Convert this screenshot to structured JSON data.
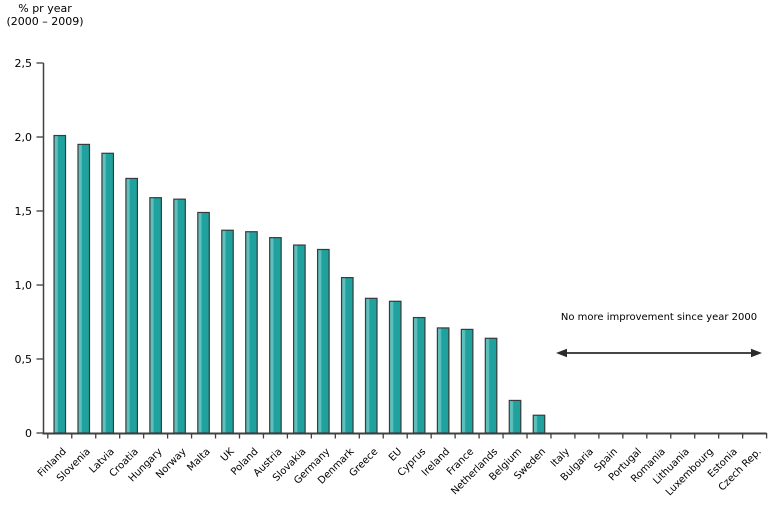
{
  "chart_data": {
    "type": "bar",
    "title": "% pr year (2000 – 2009)",
    "title_lines": [
      "% pr year",
      "(2000 – 2009)"
    ],
    "xlabel": "",
    "ylabel": "% pr year",
    "ylim": [
      0,
      2.5
    ],
    "ytick_interval": 0.5,
    "ytick_labels": [
      "0",
      "0,5",
      "1,0",
      "1,5",
      "2,0",
      "2,5"
    ],
    "decimal_separator": ",",
    "grid": false,
    "legend": "none",
    "categories": [
      "Finland",
      "Slovenia",
      "Latvia",
      "Croatia",
      "Hungary",
      "Norway",
      "Malta",
      "UK",
      "Poland",
      "Austria",
      "Slovakia",
      "Germany",
      "Denmark",
      "Greece",
      "EU",
      "Cyprus",
      "Ireland",
      "France",
      "Netherlands",
      "Belgium",
      "Sweden",
      "Italy",
      "Bulgaria",
      "Spain",
      "Portugal",
      "Romania",
      "Lithuania",
      "Luxembourg",
      "Estonia",
      "Czech Rep."
    ],
    "values": [
      2.01,
      1.95,
      1.89,
      1.72,
      1.59,
      1.58,
      1.49,
      1.37,
      1.36,
      1.32,
      1.27,
      1.24,
      1.05,
      0.91,
      0.89,
      0.78,
      0.71,
      0.7,
      0.64,
      0.22,
      0.12,
      0,
      0,
      0,
      0,
      0,
      0,
      0,
      0,
      0
    ],
    "bar_color": "#1FA19E",
    "bar_highlight_color": "#5FBFBC",
    "bar_border_color": "#3A3A3A",
    "axis_color": "#404040",
    "annotation": {
      "text": "No more improvement since year 2000",
      "arrow": "double-headed horizontal",
      "spans_categories_from": "Italy",
      "spans_categories_to": "Czech Rep."
    }
  }
}
